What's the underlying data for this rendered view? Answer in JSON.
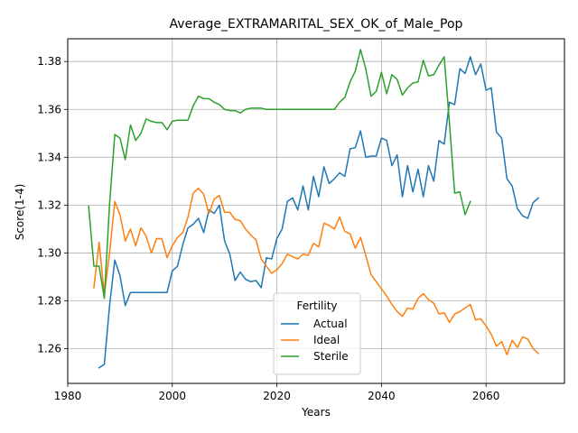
{
  "chart_data": {
    "type": "line",
    "title": "Average_EXTRAMARITAL_SEX_OK_of_Male_Pop",
    "xlabel": "Years",
    "ylabel": "Score(1-4)",
    "xlim": [
      1980,
      2075
    ],
    "ylim": [
      1.2455,
      1.3895
    ],
    "xticks": [
      1980,
      2000,
      2020,
      2040,
      2060
    ],
    "yticks": [
      1.26,
      1.28,
      1.3,
      1.32,
      1.34,
      1.36,
      1.38
    ],
    "ytick_labels": [
      "1.26",
      "1.28",
      "1.30",
      "1.32",
      "1.34",
      "1.36",
      "1.38"
    ],
    "grid": true,
    "legend": {
      "title": "Fertility",
      "placement": "lower-center"
    },
    "series": [
      {
        "name": "Actual",
        "color": "#1f77b4",
        "x": [
          1986,
          1987,
          1988,
          1989,
          1990,
          1991,
          1992,
          1993,
          1994,
          1995,
          1996,
          1997,
          1998,
          1999,
          2000,
          2001,
          2002,
          2003,
          2004,
          2005,
          2006,
          2007,
          2008,
          2009,
          2010,
          2011,
          2012,
          2013,
          2014,
          2015,
          2016,
          2017,
          2018,
          2019,
          2020,
          2021,
          2022,
          2023,
          2024,
          2025,
          2026,
          2027,
          2028,
          2029,
          2030,
          2031,
          2032,
          2033,
          2034,
          2035,
          2036,
          2037,
          2038,
          2039,
          2040,
          2041,
          2042,
          2043,
          2044,
          2045,
          2046,
          2047,
          2048,
          2049,
          2050,
          2051,
          2052,
          2053,
          2054,
          2055,
          2056,
          2057,
          2058,
          2059,
          2060,
          2061,
          2062,
          2063,
          2064,
          2065,
          2066,
          2067,
          2068,
          2069,
          2070
        ],
        "y": [
          1.252,
          1.2535,
          1.278,
          1.297,
          1.2905,
          1.278,
          1.2835,
          1.2835,
          1.2835,
          1.2835,
          1.2835,
          1.2835,
          1.2835,
          1.2835,
          1.2925,
          1.2945,
          1.3035,
          1.3105,
          1.312,
          1.3145,
          1.3085,
          1.318,
          1.3165,
          1.32,
          1.305,
          1.2995,
          1.2885,
          1.292,
          1.289,
          1.288,
          1.2885,
          1.2855,
          1.298,
          1.2975,
          1.306,
          1.31,
          1.3215,
          1.323,
          1.318,
          1.328,
          1.318,
          1.332,
          1.3235,
          1.336,
          1.329,
          1.331,
          1.3335,
          1.332,
          1.3435,
          1.344,
          1.351,
          1.34,
          1.3405,
          1.3405,
          1.348,
          1.347,
          1.3365,
          1.341,
          1.3235,
          1.3365,
          1.3255,
          1.335,
          1.3235,
          1.3365,
          1.33,
          1.347,
          1.3455,
          1.363,
          1.362,
          1.377,
          1.375,
          1.382,
          1.3745,
          1.379,
          1.368,
          1.369,
          1.3505,
          1.348,
          1.331,
          1.328,
          1.3185,
          1.3155,
          1.3145,
          1.321,
          1.323
        ]
      },
      {
        "name": "Ideal",
        "color": "#ff7f0e",
        "x": [
          1985,
          1986,
          1987,
          1988,
          1989,
          1990,
          1991,
          1992,
          1993,
          1994,
          1995,
          1996,
          1997,
          1998,
          1999,
          2000,
          2001,
          2002,
          2003,
          2004,
          2005,
          2006,
          2007,
          2008,
          2009,
          2010,
          2011,
          2012,
          2013,
          2014,
          2015,
          2016,
          2017,
          2018,
          2019,
          2020,
          2021,
          2022,
          2023,
          2024,
          2025,
          2026,
          2027,
          2028,
          2029,
          2030,
          2031,
          2032,
          2033,
          2034,
          2035,
          2036,
          2037,
          2038,
          2039,
          2040,
          2041,
          2042,
          2043,
          2044,
          2045,
          2046,
          2047,
          2048,
          2049,
          2050,
          2051,
          2052,
          2053,
          2054,
          2055,
          2056,
          2057,
          2058,
          2059,
          2060,
          2061,
          2062,
          2063,
          2064,
          2065,
          2066,
          2067,
          2068,
          2069,
          2070
        ],
        "y": [
          1.2855,
          1.3045,
          1.2825,
          1.3,
          1.3215,
          1.316,
          1.305,
          1.31,
          1.303,
          1.3105,
          1.307,
          1.3,
          1.306,
          1.306,
          1.298,
          1.303,
          1.3065,
          1.3085,
          1.315,
          1.325,
          1.327,
          1.3245,
          1.3165,
          1.3225,
          1.324,
          1.317,
          1.317,
          1.314,
          1.3135,
          1.31,
          1.3075,
          1.3055,
          1.2975,
          1.2945,
          1.2915,
          1.293,
          1.2955,
          1.2995,
          1.2985,
          1.2975,
          1.2995,
          1.299,
          1.304,
          1.3025,
          1.3125,
          1.3115,
          1.31,
          1.315,
          1.309,
          1.308,
          1.302,
          1.3065,
          1.299,
          1.291,
          1.288,
          1.285,
          1.282,
          1.2785,
          1.2755,
          1.2735,
          1.277,
          1.2765,
          1.281,
          1.283,
          1.2805,
          1.279,
          1.2745,
          1.275,
          1.271,
          1.2745,
          1.2755,
          1.277,
          1.2785,
          1.272,
          1.2725,
          1.2695,
          1.266,
          1.261,
          1.263,
          1.2575,
          1.2635,
          1.2605,
          1.265,
          1.264,
          1.26,
          1.258
        ]
      },
      {
        "name": "Sterile",
        "color": "#2ca02c",
        "x": [
          1984,
          1985,
          1986,
          1987,
          1988,
          1989,
          1990,
          1991,
          1992,
          1993,
          1994,
          1995,
          1996,
          1997,
          1998,
          1999,
          2000,
          2001,
          2002,
          2003,
          2004,
          2005,
          2006,
          2007,
          2008,
          2009,
          2010,
          2011,
          2012,
          2013,
          2014,
          2015,
          2016,
          2017,
          2018,
          2019,
          2020,
          2021,
          2022,
          2023,
          2024,
          2025,
          2026,
          2027,
          2028,
          2029,
          2030,
          2031,
          2032,
          2033,
          2034,
          2035,
          2036,
          2037,
          2038,
          2039,
          2040,
          2041,
          2042,
          2043,
          2044,
          2045,
          2046,
          2047,
          2048,
          2049,
          2050,
          2051,
          2052,
          2053,
          2054,
          2055,
          2056,
          2057
        ],
        "y": [
          1.3195,
          1.2945,
          1.2945,
          1.281,
          1.3205,
          1.3495,
          1.348,
          1.339,
          1.3535,
          1.347,
          1.35,
          1.356,
          1.355,
          1.3545,
          1.3545,
          1.3515,
          1.355,
          1.3555,
          1.3555,
          1.3555,
          1.3615,
          1.3655,
          1.3645,
          1.3645,
          1.363,
          1.362,
          1.36,
          1.3595,
          1.3595,
          1.3585,
          1.36,
          1.3605,
          1.3605,
          1.3605,
          1.36,
          1.36,
          1.36,
          1.36,
          1.36,
          1.36,
          1.36,
          1.36,
          1.36,
          1.36,
          1.36,
          1.36,
          1.36,
          1.36,
          1.363,
          1.365,
          1.3715,
          1.376,
          1.385,
          1.377,
          1.3655,
          1.3675,
          1.3755,
          1.3665,
          1.3745,
          1.3725,
          1.366,
          1.369,
          1.371,
          1.3715,
          1.3805,
          1.374,
          1.3745,
          1.3785,
          1.382,
          1.3545,
          1.325,
          1.3255,
          1.316,
          1.3215
        ]
      }
    ]
  }
}
